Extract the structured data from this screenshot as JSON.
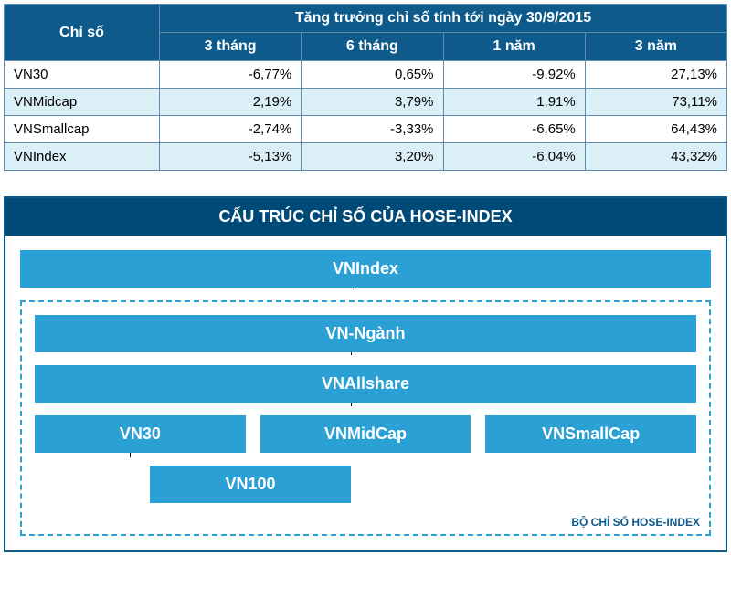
{
  "table": {
    "colors": {
      "header_bg": "#0d5a8b",
      "header_text": "#ffffff",
      "border": "#5f8db0",
      "row_even_bg": "#ffffff",
      "row_odd_bg": "#dbeff7",
      "cell_text": "#000000"
    },
    "col_widths": [
      "170px",
      "auto",
      "auto",
      "auto",
      "auto"
    ],
    "title_row_label": "Chỉ số",
    "title_span_label": "Tăng trưởng chỉ số tính tới ngày 30/9/2015",
    "periods": [
      "3 tháng",
      "6 tháng",
      "1 năm",
      "3 năm"
    ],
    "rows": [
      {
        "name": "VN30",
        "values": [
          "-6,77%",
          "0,65%",
          "-9,92%",
          "27,13%"
        ]
      },
      {
        "name": "VNMidcap",
        "values": [
          "2,19%",
          "3,79%",
          "1,91%",
          "73,11%"
        ]
      },
      {
        "name": "VNSmallcap",
        "values": [
          "-2,74%",
          "-3,33%",
          "-6,65%",
          "64,43%"
        ]
      },
      {
        "name": "VNIndex",
        "values": [
          "-5,13%",
          "3,20%",
          "-6,04%",
          "43,32%"
        ]
      }
    ],
    "header_font_size": "16px",
    "cell_font_size": "15px"
  },
  "structure": {
    "colors": {
      "frame_border": "#0d5a8b",
      "title_bg": "#004a77",
      "title_text": "#ffffff",
      "node_bg": "#2aa0d4",
      "node_text": "#ffffff",
      "dashed_border": "#2aa0d4",
      "footer_text": "#0d5a8b",
      "connector": "#000000"
    },
    "title": "CẤU TRÚC CHỈ SỐ CỦA HOSE-INDEX",
    "nodes": {
      "top": "VNIndex",
      "level2": "VN-Ngành",
      "level3": "VNAllshare",
      "level4": [
        "VN30",
        "VNMidCap",
        "VNSmallCap"
      ],
      "level5": "VN100"
    },
    "footer_label": "BỘ CHỈ SỐ HOSE-INDEX",
    "title_fontsize": "18px",
    "node_fontsize": "18px",
    "footer_fontsize": "12px"
  }
}
